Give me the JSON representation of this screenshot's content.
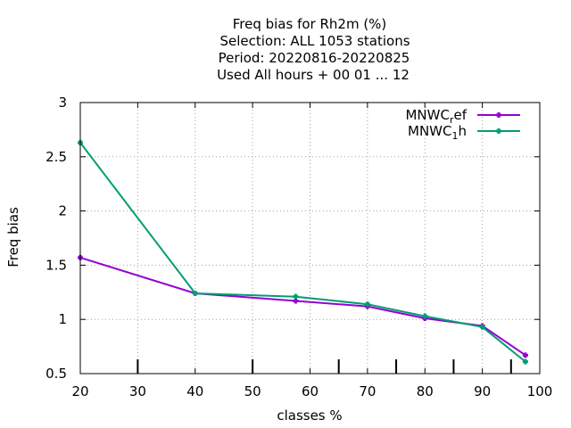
{
  "chart_data": {
    "type": "line",
    "title_lines": [
      "Freq bias  for Rh2m (%)",
      "Selection: ALL   1053 stations",
      "Period: 20220816-20220825",
      "Used  All hours  + 00 01 ... 12"
    ],
    "xlabel": "classes %",
    "ylabel": "Freq bias",
    "xlim": [
      20,
      100
    ],
    "ylim": [
      0.5,
      3
    ],
    "xticks": [
      20,
      30,
      40,
      50,
      60,
      70,
      80,
      90,
      100
    ],
    "yticks": [
      0.5,
      1,
      1.5,
      2,
      2.5,
      3
    ],
    "xtick_labels": [
      "20",
      "30",
      "40",
      "50",
      "60",
      "70",
      "80",
      "90",
      "100"
    ],
    "ytick_labels": [
      "0.5",
      "1",
      "1.5",
      "2",
      "2.5",
      "3"
    ],
    "class_markers": [
      30,
      50,
      65,
      75,
      85,
      95
    ],
    "grid": true,
    "legend_position": "top-right",
    "series": [
      {
        "name_base": "MNWC",
        "name_sub": "r",
        "name_rest": "ef",
        "color": "#9400d3",
        "x": [
          20,
          40,
          57.5,
          70,
          80,
          90,
          97.5
        ],
        "y": [
          1.57,
          1.24,
          1.17,
          1.12,
          1.01,
          0.94,
          0.67
        ]
      },
      {
        "name_base": "MNWC",
        "name_sub": "1",
        "name_rest": "h",
        "color": "#009e73",
        "x": [
          20,
          40,
          57.5,
          70,
          80,
          90,
          97.5
        ],
        "y": [
          2.63,
          1.24,
          1.21,
          1.14,
          1.03,
          0.93,
          0.61
        ]
      }
    ]
  }
}
